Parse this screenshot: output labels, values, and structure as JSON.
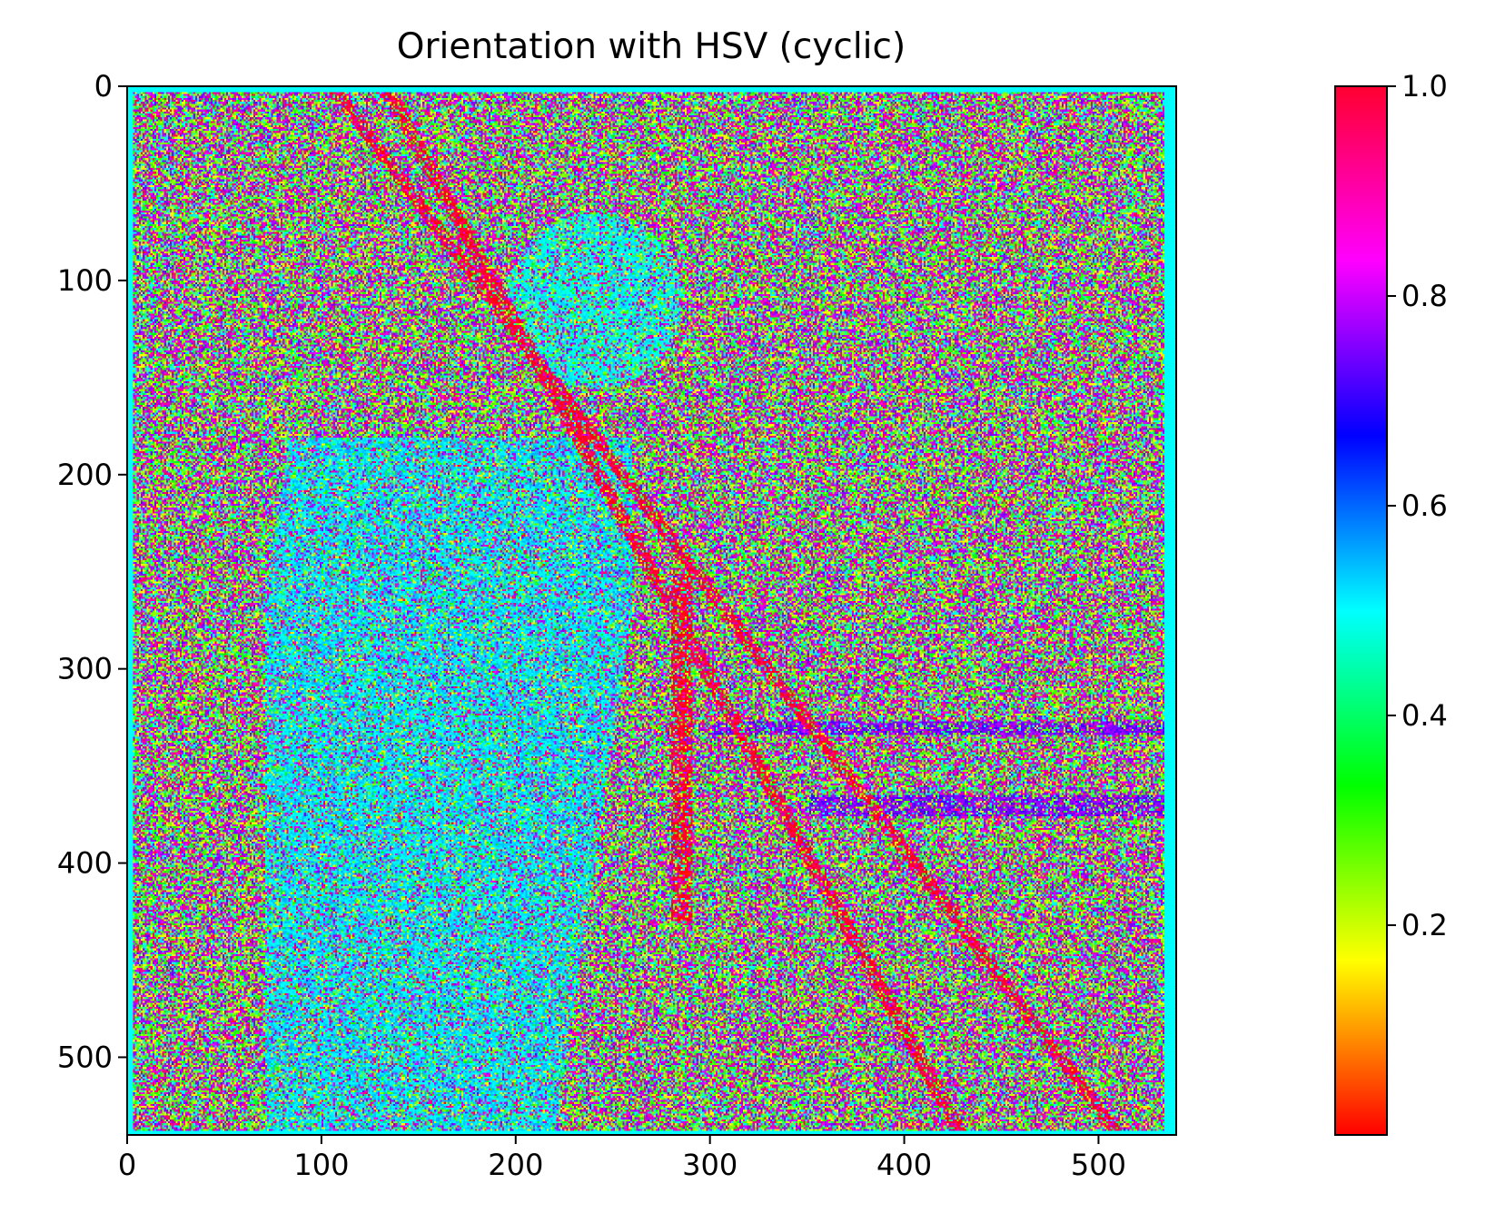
{
  "chart_data": {
    "type": "heatmap",
    "title": "Orientation with HSV (cyclic)",
    "xlabel": "",
    "ylabel": "",
    "xlim": [
      0,
      540
    ],
    "ylim": [
      540,
      0
    ],
    "x_ticks": [
      {
        "value": 0,
        "label": "0"
      },
      {
        "value": 100,
        "label": "100"
      },
      {
        "value": 200,
        "label": "200"
      },
      {
        "value": 300,
        "label": "300"
      },
      {
        "value": 400,
        "label": "400"
      },
      {
        "value": 500,
        "label": "500"
      }
    ],
    "y_ticks": [
      {
        "value": 0,
        "label": "0"
      },
      {
        "value": 100,
        "label": "100"
      },
      {
        "value": 200,
        "label": "200"
      },
      {
        "value": 300,
        "label": "300"
      },
      {
        "value": 400,
        "label": "400"
      },
      {
        "value": 500,
        "label": "500"
      }
    ],
    "colormap": "hsv",
    "colorbar": {
      "range": [
        0.0,
        1.0
      ],
      "ticks": [
        {
          "value": 0.2,
          "label": "0.2"
        },
        {
          "value": 0.4,
          "label": "0.4"
        },
        {
          "value": 0.6,
          "label": "0.6"
        },
        {
          "value": 0.8,
          "label": "0.8"
        },
        {
          "value": 1.0,
          "label": "1.0"
        }
      ]
    },
    "border_value": 0.5,
    "description_of_field": "noisy orientation map; edges of cameraman scene"
  },
  "colors": {
    "border": "#00ffe8",
    "axis": "#000000"
  }
}
